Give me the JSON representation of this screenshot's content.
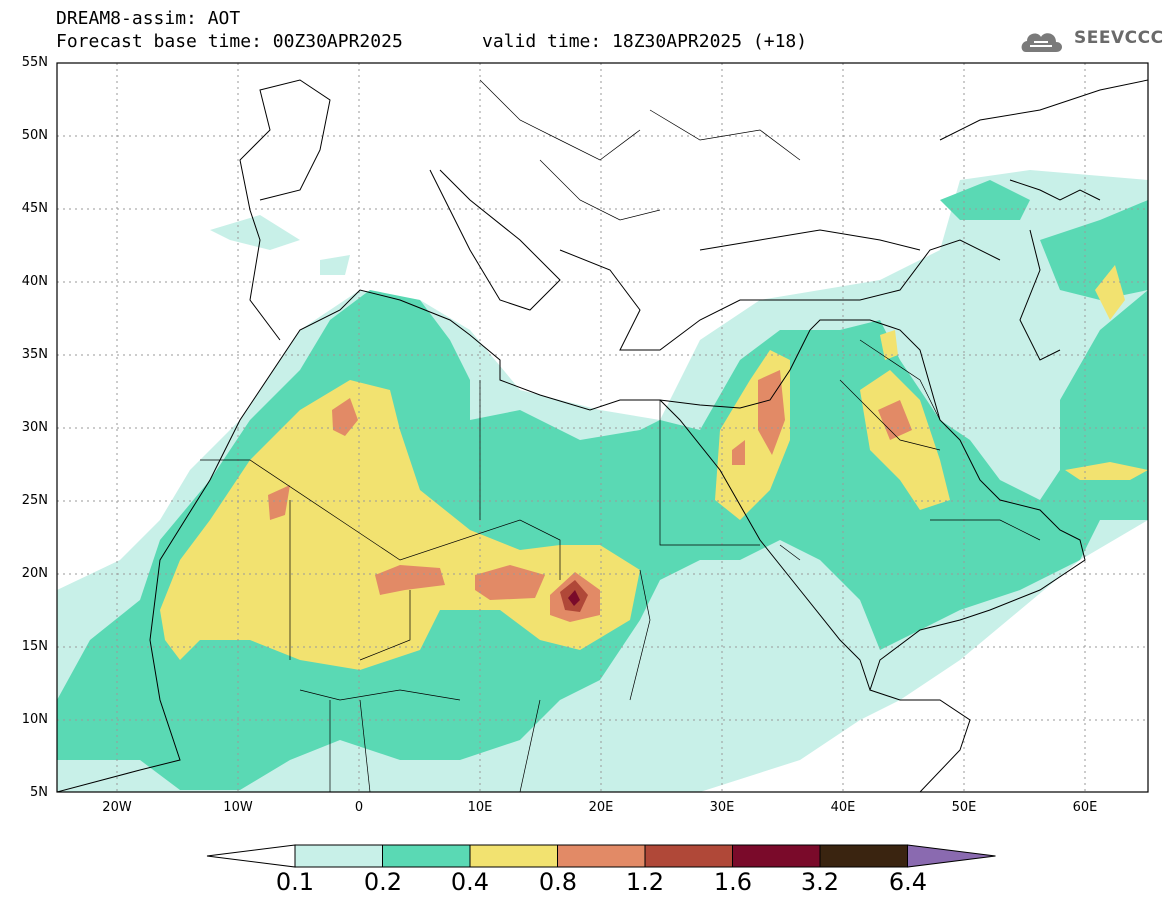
{
  "header": {
    "title": "DREAM8-assim: AOT",
    "base_time": "Forecast base time: 00Z30APR2025",
    "valid_time": "valid time: 18Z30APR2025 (+18)",
    "logo_text": "SEEVCCC"
  },
  "map": {
    "lat_labels": [
      "55N",
      "50N",
      "45N",
      "40N",
      "35N",
      "30N",
      "25N",
      "20N",
      "15N",
      "10N",
      "5N"
    ],
    "lon_labels": [
      "20W",
      "10W",
      "0",
      "10E",
      "20E",
      "30E",
      "40E",
      "50E",
      "60E"
    ]
  },
  "colorbar": {
    "labels": [
      "0.1",
      "0.2",
      "0.4",
      "0.8",
      "1.2",
      "1.6",
      "3.2",
      "6.4"
    ],
    "colors": [
      "#ffffff",
      "#c8f0e8",
      "#5ad9b4",
      "#f2e270",
      "#e28a66",
      "#b04838",
      "#7a0a2a",
      "#3a2410",
      "#8a6ab0"
    ]
  }
}
